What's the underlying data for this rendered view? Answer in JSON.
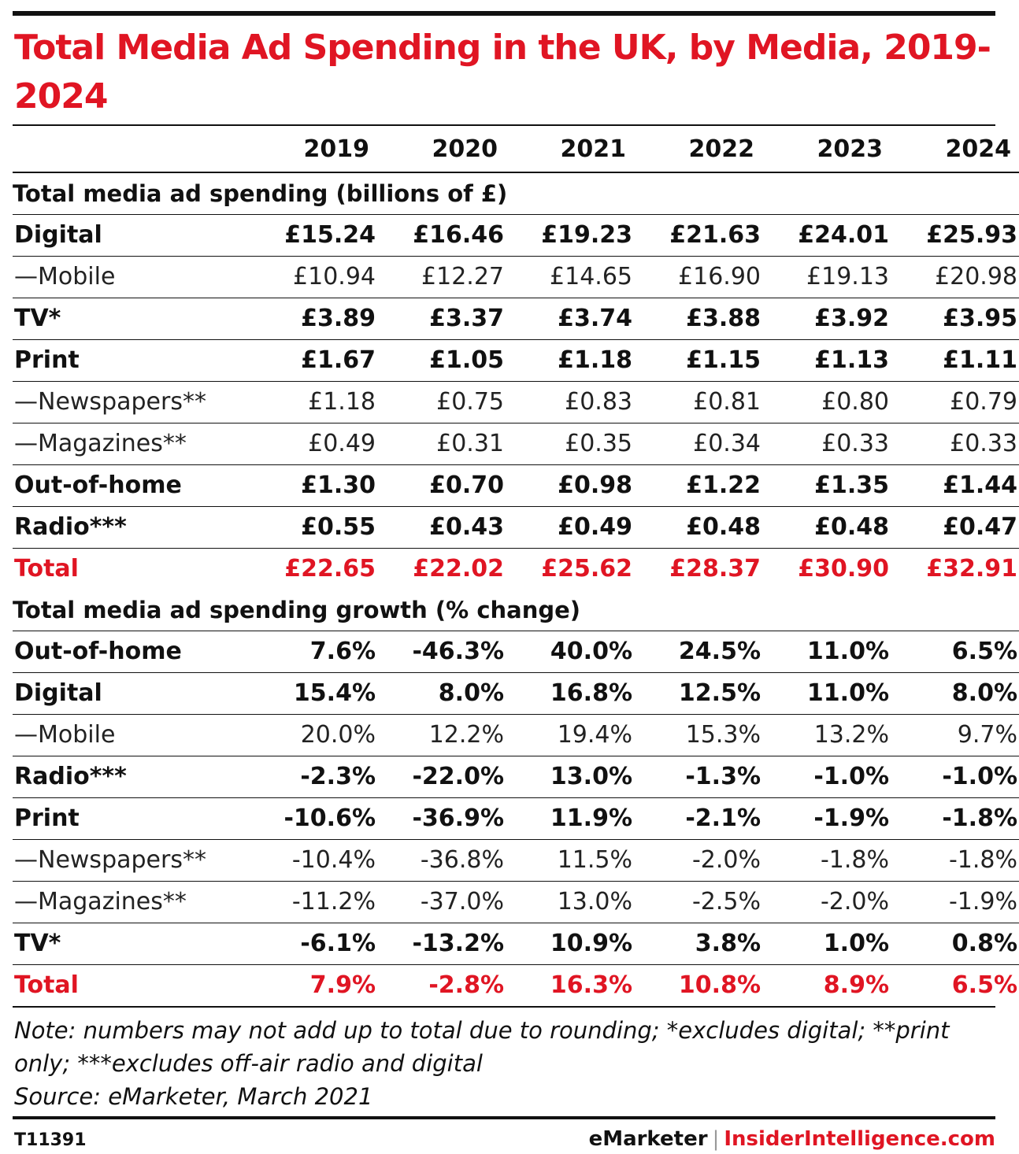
{
  "chart_data": {
    "type": "table",
    "title": "Total Media Ad Spending in the UK, by Media, 2019-2024",
    "columns": [
      "2019",
      "2020",
      "2021",
      "2022",
      "2023",
      "2024"
    ],
    "sections": [
      {
        "heading": "Total media ad spending (billions of £)",
        "rows": [
          {
            "label": "Digital",
            "style": "bold",
            "values": [
              "£15.24",
              "£16.46",
              "£19.23",
              "£21.63",
              "£24.01",
              "£25.93"
            ]
          },
          {
            "label": "—Mobile",
            "style": "sub",
            "values": [
              "£10.94",
              "£12.27",
              "£14.65",
              "£16.90",
              "£19.13",
              "£20.98"
            ]
          },
          {
            "label": "TV*",
            "style": "bold",
            "values": [
              "£3.89",
              "£3.37",
              "£3.74",
              "£3.88",
              "£3.92",
              "£3.95"
            ]
          },
          {
            "label": "Print",
            "style": "bold",
            "values": [
              "£1.67",
              "£1.05",
              "£1.18",
              "£1.15",
              "£1.13",
              "£1.11"
            ]
          },
          {
            "label": "—Newspapers**",
            "style": "sub",
            "values": [
              "£1.18",
              "£0.75",
              "£0.83",
              "£0.81",
              "£0.80",
              "£0.79"
            ]
          },
          {
            "label": "—Magazines**",
            "style": "sub",
            "values": [
              "£0.49",
              "£0.31",
              "£0.35",
              "£0.34",
              "£0.33",
              "£0.33"
            ]
          },
          {
            "label": "Out-of-home",
            "style": "bold",
            "values": [
              "£1.30",
              "£0.70",
              "£0.98",
              "£1.22",
              "£1.35",
              "£1.44"
            ]
          },
          {
            "label": "Radio***",
            "style": "bold",
            "values": [
              "£0.55",
              "£0.43",
              "£0.49",
              "£0.48",
              "£0.48",
              "£0.47"
            ]
          },
          {
            "label": "Total",
            "style": "total",
            "values": [
              "£22.65",
              "£22.02",
              "£25.62",
              "£28.37",
              "£30.90",
              "£32.91"
            ]
          }
        ]
      },
      {
        "heading": "Total media ad spending growth (% change)",
        "rows": [
          {
            "label": "Out-of-home",
            "style": "bold",
            "values": [
              "7.6%",
              "-46.3%",
              "40.0%",
              "24.5%",
              "11.0%",
              "6.5%"
            ]
          },
          {
            "label": "Digital",
            "style": "bold",
            "values": [
              "15.4%",
              "8.0%",
              "16.8%",
              "12.5%",
              "11.0%",
              "8.0%"
            ]
          },
          {
            "label": "—Mobile",
            "style": "sub",
            "values": [
              "20.0%",
              "12.2%",
              "19.4%",
              "15.3%",
              "13.2%",
              "9.7%"
            ]
          },
          {
            "label": "Radio***",
            "style": "bold",
            "values": [
              "-2.3%",
              "-22.0%",
              "13.0%",
              "-1.3%",
              "-1.0%",
              "-1.0%"
            ]
          },
          {
            "label": "Print",
            "style": "bold",
            "values": [
              "-10.6%",
              "-36.9%",
              "11.9%",
              "-2.1%",
              "-1.9%",
              "-1.8%"
            ]
          },
          {
            "label": "—Newspapers**",
            "style": "sub",
            "values": [
              "-10.4%",
              "-36.8%",
              "11.5%",
              "-2.0%",
              "-1.8%",
              "-1.8%"
            ]
          },
          {
            "label": "—Magazines**",
            "style": "sub",
            "values": [
              "-11.2%",
              "-37.0%",
              "13.0%",
              "-2.5%",
              "-2.0%",
              "-1.9%"
            ]
          },
          {
            "label": "TV*",
            "style": "bold",
            "values": [
              "-6.1%",
              "-13.2%",
              "10.9%",
              "3.8%",
              "1.0%",
              "0.8%"
            ]
          },
          {
            "label": "Total",
            "style": "total",
            "values": [
              "7.9%",
              "-2.8%",
              "16.3%",
              "10.8%",
              "8.9%",
              "6.5%"
            ]
          }
        ]
      }
    ],
    "note": "Note: numbers may not add up to total due to rounding; *excludes digital; **print only; ***excludes off-air radio and digital",
    "source": "Source: eMarketer, March 2021"
  },
  "colors": {
    "accent": "#e01523",
    "text": "#111111"
  },
  "footer": {
    "code": "T11391",
    "brand_left": "eMarketer",
    "separator": "|",
    "brand_right": "InsiderIntelligence.com"
  }
}
